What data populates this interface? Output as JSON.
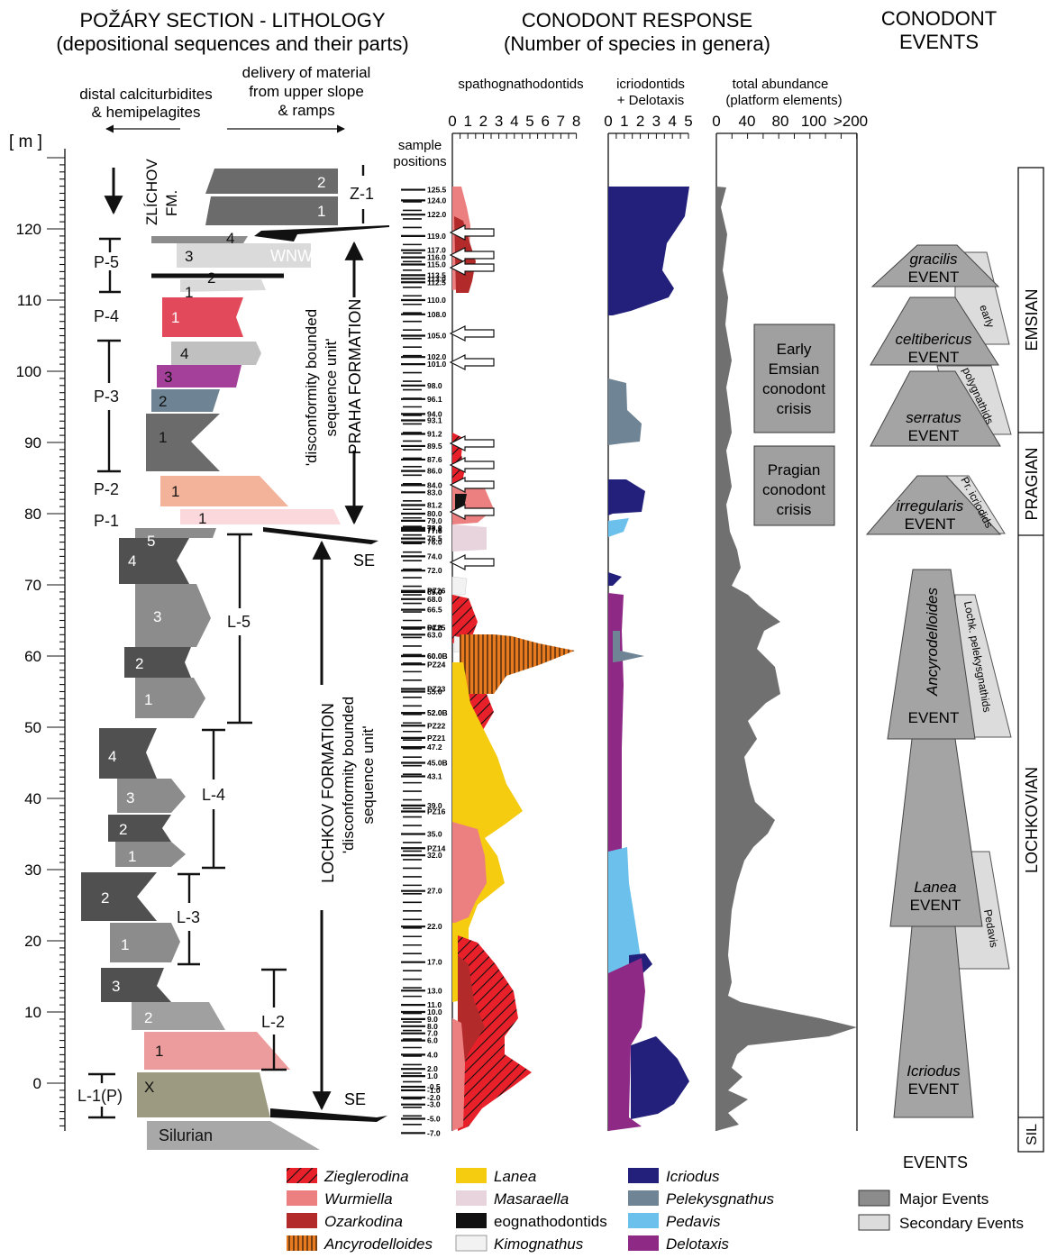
{
  "headers": {
    "litho_title": "POŽÁRY SECTION - LITHOLOGY",
    "litho_subtitle": "(depositional sequences and their parts)",
    "resp_title": "CONODONT RESPONSE",
    "resp_subtitle": "(Number of species in genera)",
    "events_title_1": "CONODONT",
    "events_title_2": "EVENTS"
  },
  "lithology": {
    "left_label_1": "distal calciturbidites",
    "left_label_2": "& hemipelagites",
    "right_label_1": "delivery of material",
    "right_label_2": "from upper slope",
    "right_label_3": "& ramps",
    "unit_label": "[ m ]",
    "scale_ticks": [
      0,
      0,
      10,
      20,
      30,
      40,
      50,
      60,
      70,
      80,
      90,
      100,
      110,
      120
    ],
    "zlichov_1": "ZLÍCHOV",
    "zlichov_2": "FM.",
    "praha_1": "'disconformity bounded",
    "praha_2": "sequence unit'",
    "praha_3": "PRAHA FORMATION",
    "lochkov_1": "LOCHKOV FORMATION",
    "lochkov_2": "'disconformity bounded",
    "lochkov_3": "sequence unit'",
    "directions": [
      "WNW",
      "SE",
      "SE"
    ],
    "sequences": [
      "Z-1",
      "P-5",
      "P-4",
      "P-3",
      "P-2",
      "P-1",
      "L-5",
      "L-4",
      "L-3",
      "L-2",
      "L-1(P)"
    ],
    "silurian": "Silurian",
    "bed_numbers": [
      "2",
      "1",
      "4",
      "3",
      "2",
      "1",
      "1",
      "4",
      "3",
      "2",
      "1",
      "1",
      "1",
      "5",
      "4",
      "3",
      "2",
      "1",
      "4",
      "3",
      "2",
      "1",
      "2",
      "1",
      "3",
      "2",
      "1",
      "X"
    ]
  },
  "samples": {
    "header_1": "sample",
    "header_2": "positions",
    "labels": [
      "125.5",
      "124.0",
      "122.0",
      "119.0",
      "117.0",
      "116.0",
      "115.0",
      "113.5",
      "113.0",
      "112.5",
      "110.0",
      "108.0",
      "105.0",
      "102.0",
      "101.0",
      "98.0",
      "96.1",
      "94.0",
      "93.1",
      "91.2",
      "89.5",
      "87.6",
      "86.0",
      "84.0",
      "83.0",
      "81.2",
      "80.0",
      "79.0",
      "78.0",
      "77.8",
      "77.6",
      "76.5",
      "76.0",
      "PZ26",
      "74.0",
      "72.0",
      "PZ25",
      "69.0",
      "68.0",
      "PZ24",
      "66.5",
      "PZ23",
      "64.0",
      "63.0",
      "PZ22",
      "PZ21",
      "60.0",
      "60.0B",
      "55.0",
      "52.0",
      "52.0B",
      "PZ16",
      "47.2",
      "45.0B",
      "PZ14",
      "43.1",
      "39.0",
      "35.0",
      "32.0",
      "27.0",
      "22.0",
      "17.0",
      "13.0",
      "11.0",
      "10.0",
      "9.0",
      "8.0",
      "7.0",
      "6.0",
      "4.0",
      "2.0",
      "1.0",
      "-0.5",
      "-1.0",
      "-2.0",
      "-3.0",
      "-5.0",
      "-7.0"
    ]
  },
  "panels": {
    "spath_title": "spathognathodontids",
    "spath_ticks": [
      "0",
      "1",
      "2",
      "3",
      "4",
      "5",
      "6",
      "7",
      "8"
    ],
    "icrio_title_1": "icriodontids",
    "icrio_title_2": "+ Delotaxis",
    "icrio_ticks": [
      "0",
      "1",
      "2",
      "3",
      "4",
      "5"
    ],
    "total_title_1": "total abundance",
    "total_title_2": "(platform elements)",
    "total_ticks": [
      "0",
      "40",
      "80",
      "100",
      ">200"
    ]
  },
  "crises": {
    "early_emsian": [
      "Early",
      "Emsian",
      "conodont",
      "crisis"
    ],
    "pragian": [
      "Pragian",
      "conodont",
      "crisis"
    ]
  },
  "events": {
    "gracilis": [
      "gracilis",
      "EVENT"
    ],
    "celtibericus": [
      "celtibericus",
      "EVENT"
    ],
    "serratus": [
      "serratus",
      "EVENT"
    ],
    "irregularis": [
      "irregularis",
      "EVENT"
    ],
    "ancyrodelloides": [
      "Ancyrodelloides",
      "EVENT"
    ],
    "lanea": [
      "Lanea",
      "EVENT"
    ],
    "icriodus": [
      "Icriodus",
      "EVENT"
    ],
    "secondary": [
      "early",
      "polygnathids",
      "Pr. icriodids",
      "Lochk. pelekysgnathids",
      "Pedavis"
    ]
  },
  "stages": [
    "EMSIAN",
    "PRAGIAN",
    "LOCHKOVIAN",
    "SIL"
  ],
  "legend": {
    "taxa": [
      {
        "name": "Zieglerodina",
        "italic": true,
        "color": "#e8202a",
        "hatch": true
      },
      {
        "name": "Wurmiella",
        "italic": true,
        "color": "#ec8080"
      },
      {
        "name": "Ozarkodina",
        "italic": true,
        "color": "#b22a2a"
      },
      {
        "name": "Ancyrodelloides",
        "italic": true,
        "color": "#e87a20",
        "hatch": true
      },
      {
        "name": "Lanea",
        "italic": true,
        "color": "#f5cc10"
      },
      {
        "name": "Masaraella",
        "italic": true,
        "color": "#e8d4dc"
      },
      {
        "name": "eognathodontids",
        "italic": false,
        "color": "#111111"
      },
      {
        "name": "Kimognathus",
        "italic": true,
        "color": "#f2f2f2"
      },
      {
        "name": "Icriodus",
        "italic": true,
        "color": "#22207a"
      },
      {
        "name": "Pelekysgnathus",
        "italic": true,
        "color": "#6f8494"
      },
      {
        "name": "Pedavis",
        "italic": true,
        "color": "#6cc0ec"
      },
      {
        "name": "Delotaxis",
        "italic": true,
        "color": "#8e2a86"
      }
    ],
    "events_title": "EVENTS",
    "major": "Major Events",
    "secondary": "Secondary Events",
    "major_color": "#8c8c8c",
    "secondary_color": "#dcdcdc"
  }
}
